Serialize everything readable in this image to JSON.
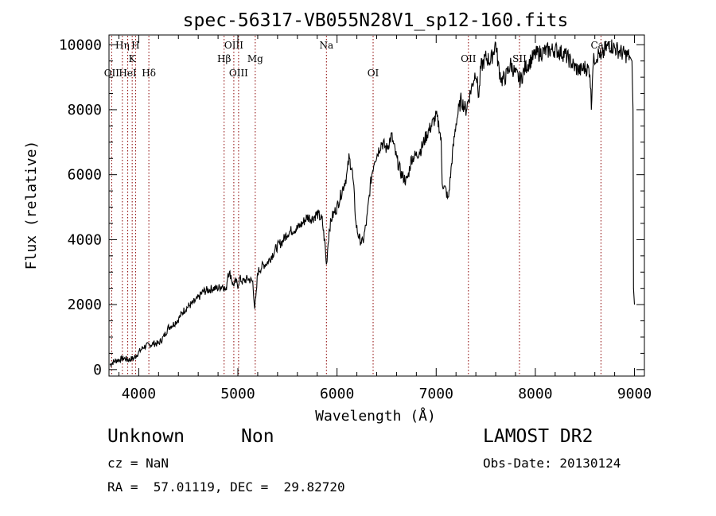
{
  "chart_data": {
    "type": "line",
    "title": "spec-56317-VB055N28V1_sp12-160.fits",
    "xlabel": "Wavelength (Å)",
    "ylabel": "Flux (relative)",
    "xlim": [
      3700,
      9100
    ],
    "ylim": [
      -200,
      10300
    ],
    "xticks": [
      4000,
      5000,
      6000,
      7000,
      8000,
      9000
    ],
    "yticks": [
      0,
      2000,
      4000,
      6000,
      8000,
      10000
    ],
    "grid": false,
    "line_color": "#000000",
    "marker_color": "#8b0000",
    "series": [
      {
        "x": [
          3710,
          3750,
          3800,
          3850,
          3900,
          3950,
          3990,
          4050,
          4100,
          4150,
          4200,
          4250,
          4300,
          4350,
          4400,
          4450,
          4500,
          4550,
          4600,
          4650,
          4700,
          4750,
          4800,
          4850,
          4880,
          4900,
          4930,
          4950,
          4980,
          5000,
          5020,
          5050,
          5100,
          5150,
          5170,
          5185,
          5200,
          5250,
          5300,
          5350,
          5400,
          5450,
          5500,
          5550,
          5600,
          5650,
          5700,
          5750,
          5800,
          5850,
          5880,
          5893,
          5905,
          5920,
          5950,
          6000,
          6050,
          6100,
          6120,
          6150,
          6170,
          6190,
          6210,
          6230,
          6260,
          6300,
          6330,
          6350,
          6380,
          6400,
          6450,
          6500,
          6550,
          6600,
          6650,
          6700,
          6720,
          6750,
          6800,
          6850,
          6900,
          6950,
          7000,
          7030,
          7050,
          7060,
          7080,
          7100,
          7120,
          7140,
          7160,
          7200,
          7250,
          7300,
          7350,
          7400,
          7430,
          7450,
          7500,
          7550,
          7600,
          7630,
          7660,
          7700,
          7750,
          7800,
          7850,
          7900,
          7950,
          8000,
          8100,
          8200,
          8300,
          8350,
          8400,
          8450,
          8500,
          8550,
          8565,
          8580,
          8600,
          8650,
          8662,
          8700,
          8750,
          8800,
          8850,
          8900,
          8950,
          8975,
          8985,
          8990,
          9000
        ],
        "y": [
          150,
          250,
          300,
          350,
          300,
          350,
          500,
          700,
          750,
          800,
          800,
          1000,
          1300,
          1400,
          1550,
          1800,
          1950,
          2050,
          2200,
          2400,
          2450,
          2500,
          2500,
          2600,
          2400,
          3000,
          2900,
          2600,
          2700,
          2600,
          2800,
          2700,
          2800,
          2700,
          1900,
          2300,
          3000,
          3200,
          3300,
          3550,
          3800,
          3950,
          4200,
          4300,
          4350,
          4500,
          4700,
          4650,
          4800,
          4600,
          3800,
          3200,
          3700,
          4300,
          4700,
          5000,
          5500,
          6000,
          6500,
          6200,
          5500,
          4500,
          4200,
          4000,
          3900,
          4600,
          5500,
          6000,
          6500,
          6600,
          7000,
          6800,
          7200,
          6500,
          6000,
          5800,
          6000,
          6500,
          6600,
          6800,
          7200,
          7500,
          7800,
          7500,
          7000,
          5800,
          5600,
          5500,
          5200,
          5800,
          6500,
          7600,
          8300,
          8000,
          8600,
          9200,
          8400,
          9300,
          9600,
          9500,
          10050,
          9300,
          8900,
          9000,
          9400,
          9100,
          8900,
          9300,
          9500,
          9700,
          9800,
          9850,
          9700,
          9500,
          9300,
          9200,
          9300,
          9200,
          8100,
          9400,
          9600,
          9750,
          9500,
          9850,
          10000,
          9900,
          9800,
          9700,
          9650,
          9500,
          8000,
          2500,
          2000
        ]
      }
    ],
    "line_markers": [
      {
        "label": "Hη",
        "x": 3835,
        "row": 1
      },
      {
        "label": "H",
        "x": 3968,
        "row": 1
      },
      {
        "label": "K",
        "x": 3934,
        "row": 2
      },
      {
        "label": "OII",
        "x": 3727,
        "row": 3
      },
      {
        "label": "HeI",
        "x": 3889,
        "row": 3
      },
      {
        "label": "Hδ",
        "x": 4102,
        "row": 3
      },
      {
        "label": "OIII",
        "x": 4959,
        "row": 1
      },
      {
        "label": "Hβ",
        "x": 4861,
        "row": 2
      },
      {
        "label": "Mg",
        "x": 5175,
        "row": 2
      },
      {
        "label": "OIII",
        "x": 5007,
        "row": 3
      },
      {
        "label": "Na",
        "x": 5893,
        "row": 1
      },
      {
        "label": "OI",
        "x": 6364,
        "row": 3
      },
      {
        "label": "OII",
        "x": 7325,
        "row": 2
      },
      {
        "label": "SII",
        "x": 7840,
        "row": 2
      },
      {
        "label": "CaII",
        "x": 8662,
        "row": 1
      }
    ]
  },
  "info": {
    "object_class": "Unknown",
    "object_subclass": "Non",
    "survey": "LAMOST DR2",
    "cz": "cz = NaN",
    "obs_date": "Obs-Date: 20130124",
    "coords": "RA =  57.01119, DEC =  29.82720"
  }
}
